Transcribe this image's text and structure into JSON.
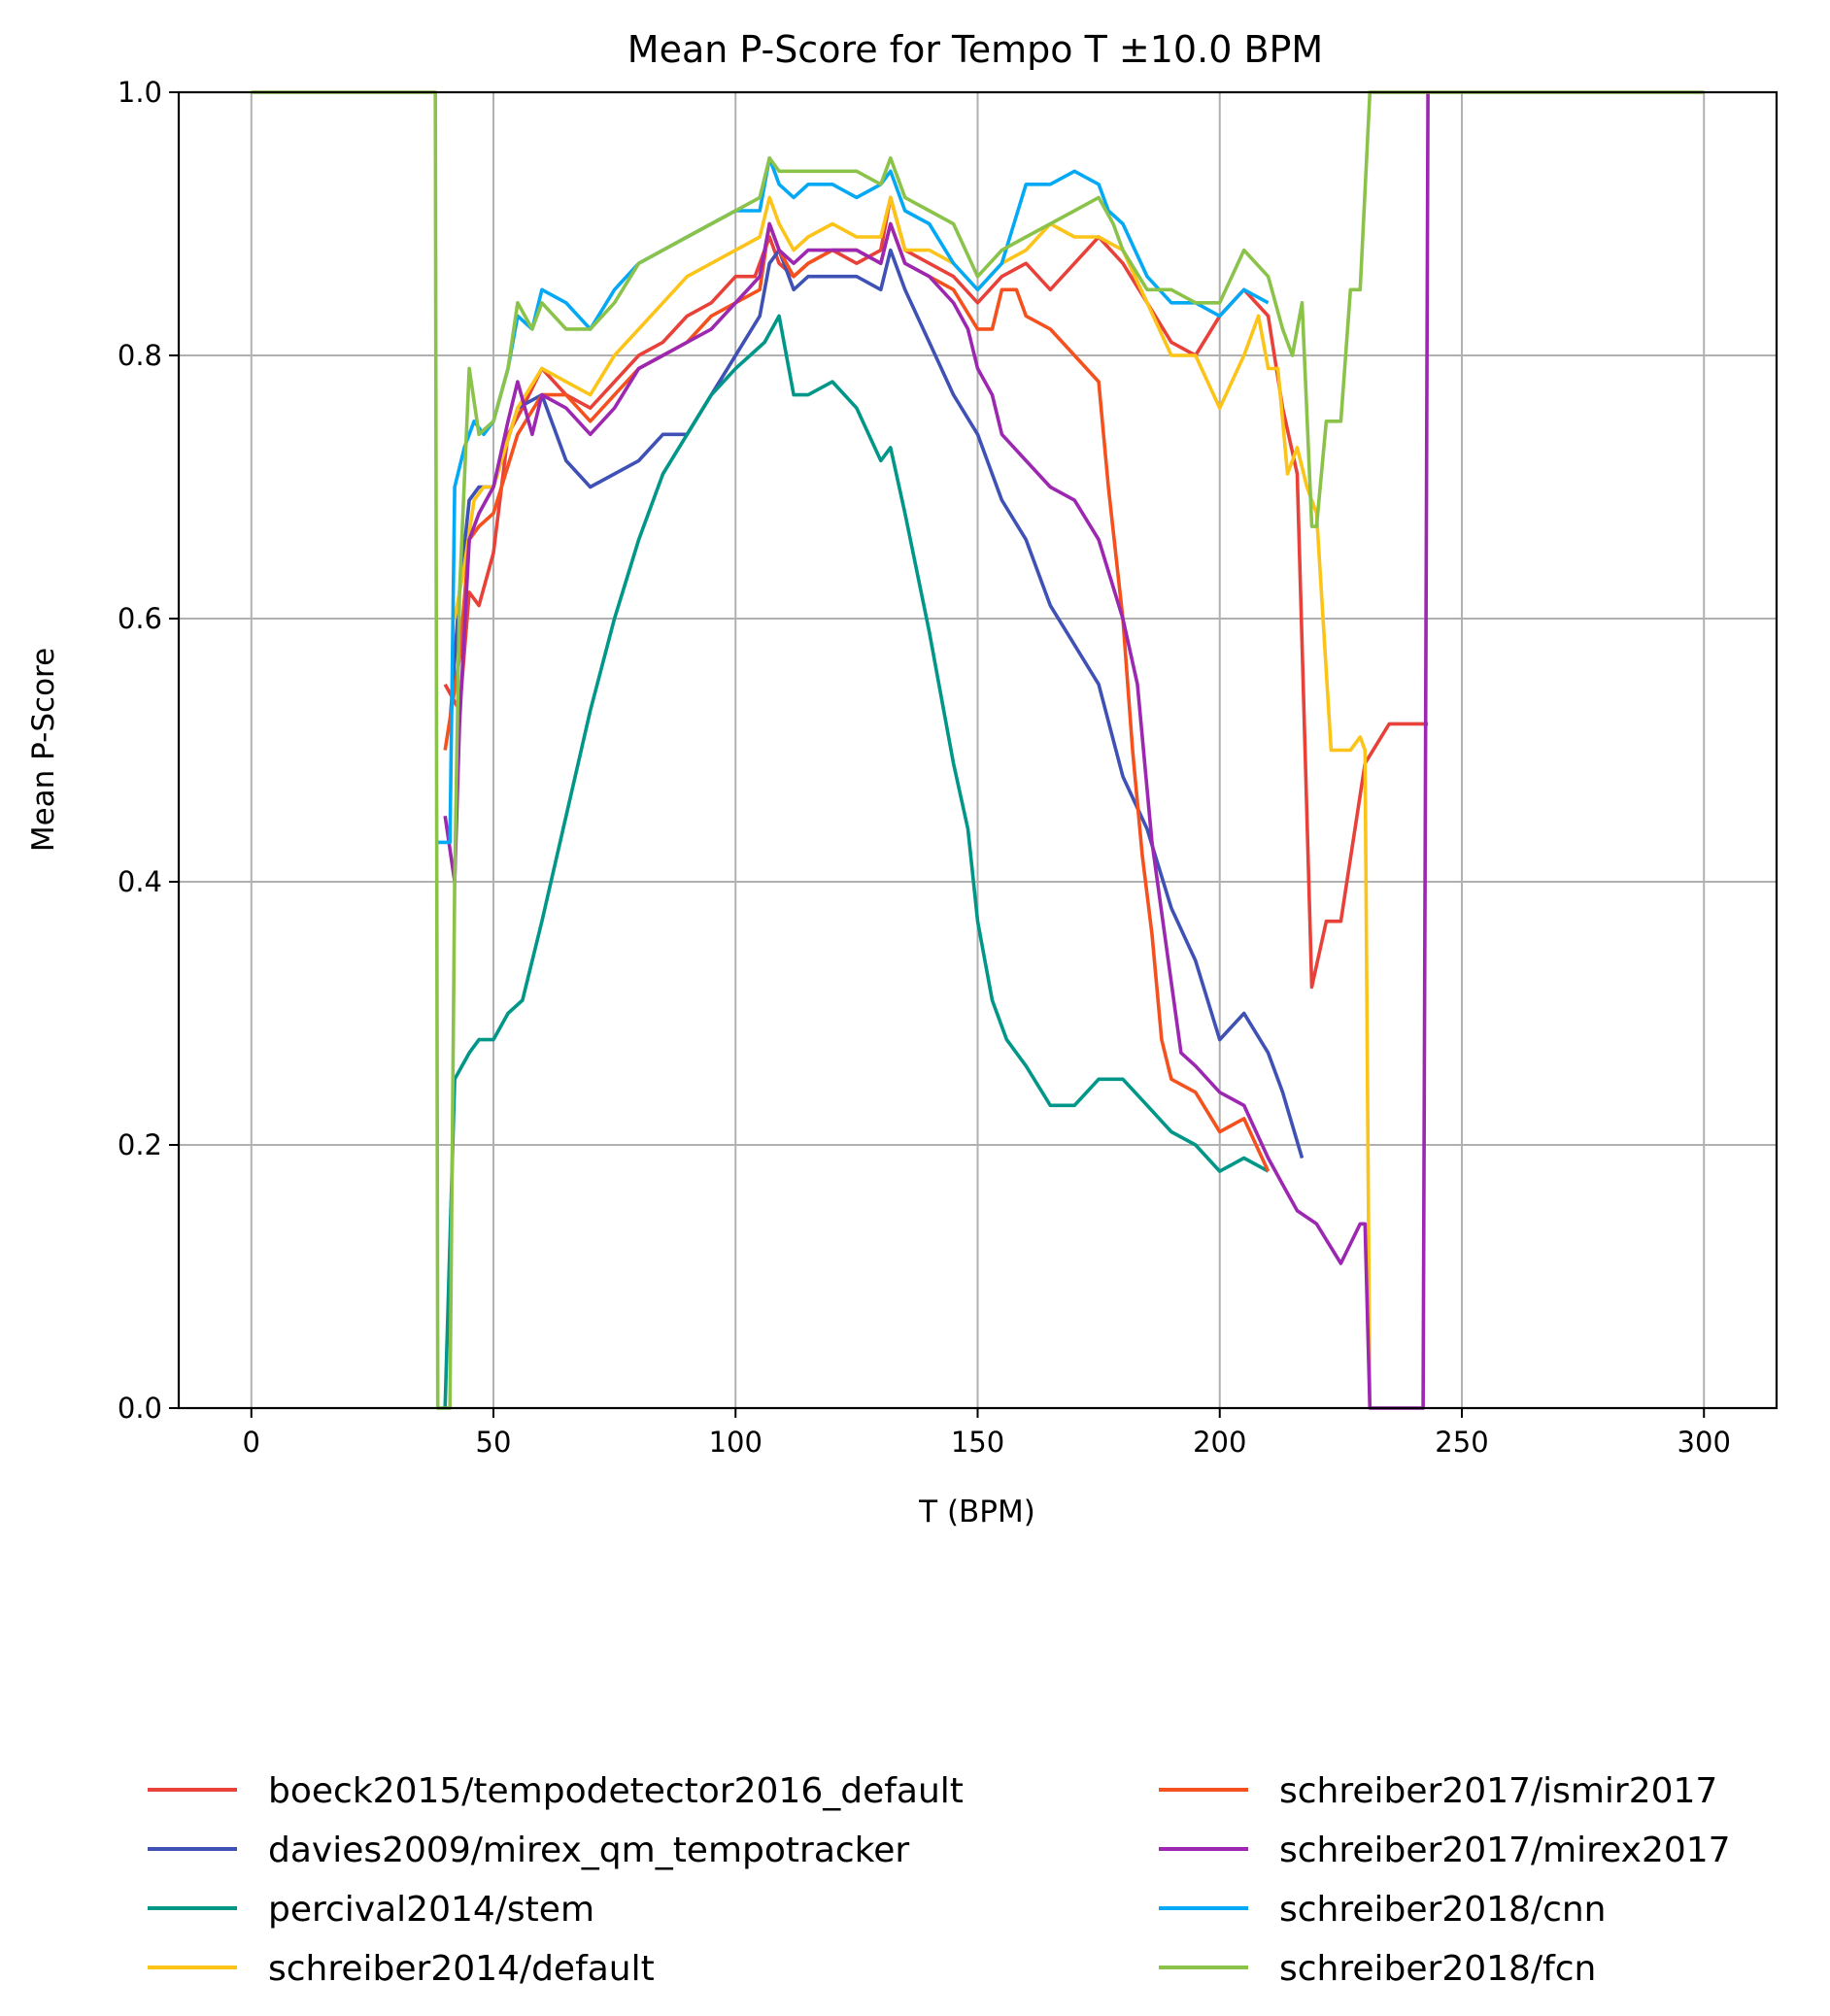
{
  "chart_data": {
    "type": "line",
    "title": "Mean P-Score for Tempo T ±10.0 BPM",
    "xlabel": "T (BPM)",
    "ylabel": "Mean P-Score",
    "xlim": [
      -15,
      315
    ],
    "ylim": [
      0.0,
      1.0
    ],
    "xticks": [
      0,
      50,
      100,
      150,
      200,
      250,
      300
    ],
    "xtick_labels": [
      "0",
      "50",
      "100",
      "150",
      "200",
      "250",
      "300"
    ],
    "yticks": [
      0.0,
      0.2,
      0.4,
      0.6,
      0.8,
      1.0
    ],
    "ytick_labels": [
      "0.0",
      "0.2",
      "0.4",
      "0.6",
      "0.8",
      "1.0"
    ],
    "grid": true,
    "legend_placement": "below",
    "series": [
      {
        "name": "boeck2015/tempodetector2016_default",
        "color": "#e8413a",
        "x": [
          40,
          43,
          45,
          47,
          50,
          53,
          56,
          60,
          65,
          70,
          75,
          80,
          85,
          90,
          95,
          100,
          104,
          107,
          109,
          112,
          115,
          120,
          125,
          130,
          132,
          135,
          140,
          145,
          150,
          155,
          160,
          165,
          170,
          175,
          180,
          185,
          190,
          195,
          200,
          205,
          210,
          213,
          216,
          219,
          222,
          225,
          230,
          235,
          243
        ],
        "y": [
          0.55,
          0.53,
          0.62,
          0.61,
          0.65,
          0.74,
          0.76,
          0.79,
          0.77,
          0.76,
          0.78,
          0.8,
          0.81,
          0.83,
          0.84,
          0.86,
          0.86,
          0.89,
          0.87,
          0.86,
          0.87,
          0.88,
          0.87,
          0.88,
          0.92,
          0.88,
          0.87,
          0.86,
          0.84,
          0.86,
          0.87,
          0.85,
          0.87,
          0.89,
          0.87,
          0.84,
          0.81,
          0.8,
          0.83,
          0.85,
          0.83,
          0.76,
          0.71,
          0.32,
          0.37,
          0.37,
          0.49,
          0.52,
          0.52
        ]
      },
      {
        "name": "davies2009/mirex_qm_tempotracker",
        "color": "#3f51b5",
        "x": [
          41,
          43,
          45,
          47,
          50,
          55,
          60,
          65,
          70,
          75,
          80,
          85,
          90,
          95,
          100,
          105,
          107,
          109,
          112,
          115,
          120,
          125,
          130,
          132,
          135,
          140,
          145,
          150,
          155,
          160,
          165,
          170,
          175,
          180,
          185,
          190,
          195,
          200,
          205,
          210,
          213,
          217
        ],
        "y": [
          0.52,
          0.62,
          0.69,
          0.7,
          0.7,
          0.76,
          0.77,
          0.72,
          0.7,
          0.71,
          0.72,
          0.74,
          0.74,
          0.77,
          0.8,
          0.83,
          0.87,
          0.88,
          0.85,
          0.86,
          0.86,
          0.86,
          0.85,
          0.88,
          0.85,
          0.81,
          0.77,
          0.74,
          0.69,
          0.66,
          0.61,
          0.58,
          0.55,
          0.48,
          0.44,
          0.38,
          0.34,
          0.28,
          0.3,
          0.27,
          0.24,
          0.19
        ]
      },
      {
        "name": "percival2014/stem",
        "color": "#009688",
        "x": [
          40,
          42,
          45,
          47,
          50,
          53,
          56,
          60,
          65,
          70,
          75,
          80,
          85,
          90,
          95,
          100,
          103,
          106,
          109,
          112,
          115,
          120,
          125,
          130,
          132,
          135,
          140,
          145,
          148,
          150,
          153,
          156,
          160,
          165,
          170,
          175,
          180,
          185,
          190,
          195,
          200,
          205,
          210
        ],
        "y": [
          0.0,
          0.25,
          0.27,
          0.28,
          0.28,
          0.3,
          0.31,
          0.37,
          0.45,
          0.53,
          0.6,
          0.66,
          0.71,
          0.74,
          0.77,
          0.79,
          0.8,
          0.81,
          0.83,
          0.77,
          0.77,
          0.78,
          0.76,
          0.72,
          0.73,
          0.68,
          0.59,
          0.49,
          0.44,
          0.37,
          0.31,
          0.28,
          0.26,
          0.23,
          0.23,
          0.25,
          0.25,
          0.23,
          0.21,
          0.2,
          0.18,
          0.19,
          0.18
        ]
      },
      {
        "name": "schreiber2014/default",
        "color": "#fcc419",
        "x": [
          42,
          44,
          46,
          48,
          50,
          55,
          60,
          65,
          70,
          75,
          80,
          85,
          90,
          95,
          100,
          105,
          107,
          109,
          112,
          115,
          120,
          125,
          130,
          132,
          135,
          140,
          145,
          150,
          155,
          160,
          165,
          170,
          175,
          180,
          185,
          190,
          195,
          200,
          205,
          208,
          210,
          212,
          214,
          216,
          218,
          220,
          223,
          227,
          229,
          230,
          231
        ],
        "y": [
          0.6,
          0.64,
          0.69,
          0.7,
          0.7,
          0.76,
          0.79,
          0.78,
          0.77,
          0.8,
          0.82,
          0.84,
          0.86,
          0.87,
          0.88,
          0.89,
          0.92,
          0.9,
          0.88,
          0.89,
          0.9,
          0.89,
          0.89,
          0.92,
          0.88,
          0.88,
          0.87,
          0.85,
          0.87,
          0.88,
          0.9,
          0.89,
          0.89,
          0.88,
          0.84,
          0.8,
          0.8,
          0.76,
          0.8,
          0.83,
          0.79,
          0.79,
          0.71,
          0.73,
          0.7,
          0.68,
          0.5,
          0.5,
          0.51,
          0.5,
          0.0
        ]
      },
      {
        "name": "schreiber2017/ismir2017",
        "color": "#f4511e",
        "x": [
          40,
          43,
          45,
          47,
          50,
          55,
          60,
          65,
          70,
          75,
          80,
          85,
          90,
          95,
          100,
          105,
          107,
          109,
          112,
          115,
          120,
          125,
          130,
          132,
          135,
          140,
          145,
          150,
          153,
          155,
          158,
          160,
          165,
          170,
          175,
          177,
          180,
          182,
          184,
          186,
          188,
          190,
          195,
          200,
          205,
          210
        ],
        "y": [
          0.5,
          0.57,
          0.66,
          0.67,
          0.68,
          0.74,
          0.77,
          0.77,
          0.75,
          0.77,
          0.79,
          0.8,
          0.81,
          0.83,
          0.84,
          0.85,
          0.9,
          0.88,
          0.86,
          0.87,
          0.88,
          0.88,
          0.87,
          0.9,
          0.87,
          0.86,
          0.85,
          0.82,
          0.82,
          0.85,
          0.85,
          0.83,
          0.82,
          0.8,
          0.78,
          0.7,
          0.6,
          0.5,
          0.42,
          0.36,
          0.28,
          0.25,
          0.24,
          0.21,
          0.22,
          0.18
        ]
      },
      {
        "name": "schreiber2017/mirex2017",
        "color": "#9c27b0",
        "x": [
          40,
          42,
          43,
          45,
          47,
          50,
          53,
          55,
          58,
          60,
          65,
          70,
          75,
          80,
          85,
          90,
          95,
          100,
          105,
          107,
          109,
          112,
          115,
          120,
          125,
          130,
          132,
          135,
          140,
          145,
          148,
          150,
          153,
          155,
          160,
          165,
          170,
          175,
          180,
          183,
          186,
          189,
          192,
          195,
          200,
          205,
          210,
          213,
          216,
          220,
          225,
          229,
          230,
          231,
          236,
          242,
          243
        ],
        "y": [
          0.45,
          0.4,
          0.52,
          0.66,
          0.68,
          0.7,
          0.75,
          0.78,
          0.74,
          0.77,
          0.76,
          0.74,
          0.76,
          0.79,
          0.8,
          0.81,
          0.82,
          0.84,
          0.86,
          0.9,
          0.88,
          0.87,
          0.88,
          0.88,
          0.88,
          0.87,
          0.9,
          0.87,
          0.86,
          0.84,
          0.82,
          0.79,
          0.77,
          0.74,
          0.72,
          0.7,
          0.69,
          0.66,
          0.6,
          0.55,
          0.43,
          0.35,
          0.27,
          0.26,
          0.24,
          0.23,
          0.19,
          0.17,
          0.15,
          0.14,
          0.11,
          0.14,
          0.14,
          0.0,
          0.0,
          0.0,
          1.0
        ]
      },
      {
        "name": "schreiber2018/cnn",
        "color": "#03a9f4",
        "x": [
          38,
          40,
          41,
          42,
          44,
          46,
          48,
          50,
          53,
          55,
          58,
          60,
          65,
          70,
          75,
          80,
          85,
          90,
          95,
          100,
          105,
          107,
          109,
          112,
          115,
          120,
          125,
          130,
          132,
          135,
          140,
          145,
          150,
          155,
          160,
          165,
          170,
          175,
          177,
          180,
          185,
          190,
          195,
          200,
          205,
          210
        ],
        "y": [
          0.43,
          0.43,
          0.43,
          0.7,
          0.73,
          0.75,
          0.74,
          0.75,
          0.79,
          0.83,
          0.82,
          0.85,
          0.84,
          0.82,
          0.85,
          0.87,
          0.88,
          0.89,
          0.9,
          0.91,
          0.91,
          0.95,
          0.93,
          0.92,
          0.93,
          0.93,
          0.92,
          0.93,
          0.94,
          0.91,
          0.9,
          0.87,
          0.85,
          0.87,
          0.93,
          0.93,
          0.94,
          0.93,
          0.91,
          0.9,
          0.86,
          0.84,
          0.84,
          0.83,
          0.85,
          0.84
        ]
      },
      {
        "name": "schreiber2018/fcn",
        "color": "#8bc34a",
        "x": [
          0,
          10,
          20,
          30,
          37,
          38,
          38.5,
          40,
          41,
          42,
          43,
          45,
          47,
          50,
          53,
          55,
          58,
          60,
          65,
          70,
          75,
          80,
          85,
          90,
          95,
          100,
          105,
          107,
          109,
          112,
          115,
          120,
          125,
          130,
          132,
          135,
          140,
          145,
          150,
          155,
          160,
          165,
          170,
          175,
          178,
          180,
          185,
          190,
          195,
          200,
          205,
          210,
          213,
          215,
          217,
          219,
          220,
          222,
          225,
          227,
          229,
          231,
          234,
          245,
          300
        ],
        "y": [
          1.0,
          1.0,
          1.0,
          1.0,
          1.0,
          1.0,
          0.0,
          0.0,
          0.0,
          0.4,
          0.62,
          0.79,
          0.74,
          0.75,
          0.79,
          0.84,
          0.82,
          0.84,
          0.82,
          0.82,
          0.84,
          0.87,
          0.88,
          0.89,
          0.9,
          0.91,
          0.92,
          0.95,
          0.94,
          0.94,
          0.94,
          0.94,
          0.94,
          0.93,
          0.95,
          0.92,
          0.91,
          0.9,
          0.86,
          0.88,
          0.89,
          0.9,
          0.91,
          0.92,
          0.9,
          0.88,
          0.85,
          0.85,
          0.84,
          0.84,
          0.88,
          0.86,
          0.82,
          0.8,
          0.84,
          0.67,
          0.67,
          0.75,
          0.75,
          0.85,
          0.85,
          1.0,
          1.0,
          1.0,
          1.0
        ]
      }
    ]
  }
}
